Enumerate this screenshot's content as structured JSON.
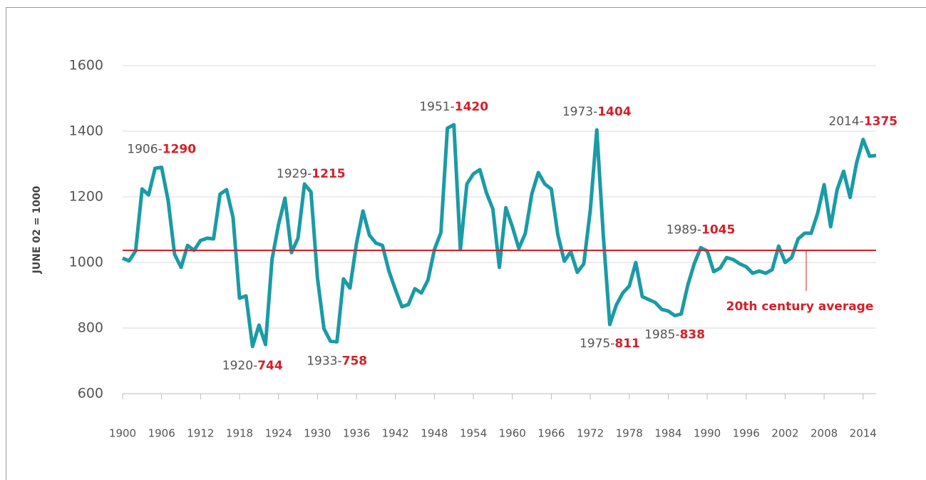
{
  "chart_data": {
    "type": "line",
    "y_axis_label": "JUNE 02 = 1000",
    "x": [
      1900,
      1901,
      1902,
      1903,
      1904,
      1905,
      1906,
      1907,
      1908,
      1909,
      1910,
      1911,
      1912,
      1913,
      1914,
      1915,
      1916,
      1917,
      1918,
      1919,
      1920,
      1921,
      1922,
      1923,
      1924,
      1925,
      1926,
      1927,
      1928,
      1929,
      1930,
      1931,
      1932,
      1933,
      1934,
      1935,
      1936,
      1937,
      1938,
      1939,
      1940,
      1941,
      1942,
      1943,
      1944,
      1945,
      1946,
      1947,
      1948,
      1949,
      1950,
      1951,
      1952,
      1953,
      1954,
      1955,
      1956,
      1957,
      1958,
      1959,
      1960,
      1961,
      1962,
      1963,
      1964,
      1965,
      1966,
      1967,
      1968,
      1969,
      1970,
      1971,
      1972,
      1973,
      1974,
      1975,
      1976,
      1977,
      1978,
      1979,
      1980,
      1981,
      1982,
      1983,
      1984,
      1985,
      1986,
      1987,
      1988,
      1989,
      1990,
      1991,
      1992,
      1993,
      1994,
      1995,
      1996,
      1997,
      1998,
      1999,
      2000,
      2001,
      2002,
      2003,
      2004,
      2005,
      2006,
      2007,
      2008,
      2009,
      2010,
      2011,
      2012,
      2013,
      2014,
      2015,
      2016
    ],
    "series": [
      {
        "color": "#1a9ba6",
        "values": [
          1013,
          1005,
          1035,
          1224,
          1206,
          1287,
          1290,
          1190,
          1025,
          985,
          1052,
          1037,
          1067,
          1074,
          1072,
          1208,
          1222,
          1137,
          891,
          898,
          744,
          809,
          750,
          1009,
          1115,
          1196,
          1030,
          1074,
          1239,
          1215,
          952,
          798,
          760,
          758,
          950,
          922,
          1057,
          1157,
          1083,
          1059,
          1052,
          974,
          917,
          865,
          872,
          920,
          907,
          946,
          1039,
          1091,
          1409,
          1420,
          1039,
          1239,
          1270,
          1283,
          1213,
          1163,
          985,
          1167,
          1109,
          1043,
          1089,
          1209,
          1274,
          1239,
          1224,
          1085,
          1004,
          1033,
          970,
          996,
          1159,
          1404,
          1083,
          811,
          870,
          907,
          928,
          1000,
          896,
          887,
          878,
          857,
          852,
          838,
          843,
          930,
          996,
          1045,
          1035,
          972,
          983,
          1015,
          1009,
          996,
          987,
          967,
          974,
          967,
          978,
          1050,
          1000,
          1015,
          1072,
          1089,
          1089,
          1150,
          1237,
          1109,
          1222,
          1278,
          1198,
          1304,
          1375,
          1324,
          1326
        ]
      }
    ],
    "xlim": [
      1900,
      2016
    ],
    "xticks": [
      1900,
      1906,
      1912,
      1918,
      1924,
      1930,
      1936,
      1942,
      1948,
      1954,
      1960,
      1966,
      1972,
      1978,
      1984,
      1990,
      1996,
      2002,
      2008,
      2014
    ],
    "ylim": [
      600,
      1600
    ],
    "yticks": [
      600,
      800,
      1000,
      1200,
      1400,
      1600
    ],
    "grid": true,
    "average": {
      "value": 1037,
      "label": "20th century average",
      "color": "#d4202a"
    },
    "annotations": [
      {
        "x": 1906,
        "label": "1906-",
        "value": 1290,
        "position": "above"
      },
      {
        "x": 1920,
        "label": "1920-",
        "value": 744,
        "position": "below"
      },
      {
        "x": 1929,
        "label": "1929-",
        "value": 1215,
        "position": "above"
      },
      {
        "x": 1933,
        "label": "1933-",
        "value": 758,
        "position": "below"
      },
      {
        "x": 1951,
        "label": "1951-",
        "value": 1420,
        "position": "above"
      },
      {
        "x": 1973,
        "label": "1973-",
        "value": 1404,
        "position": "above"
      },
      {
        "x": 1975,
        "label": "1975-",
        "value": 811,
        "position": "below"
      },
      {
        "x": 1985,
        "label": "1985-",
        "value": 838,
        "position": "below"
      },
      {
        "x": 1989,
        "label": "1989-",
        "value": 1045,
        "position": "above"
      },
      {
        "x": 2014,
        "label": "2014-",
        "value": 1375,
        "position": "above"
      }
    ]
  }
}
